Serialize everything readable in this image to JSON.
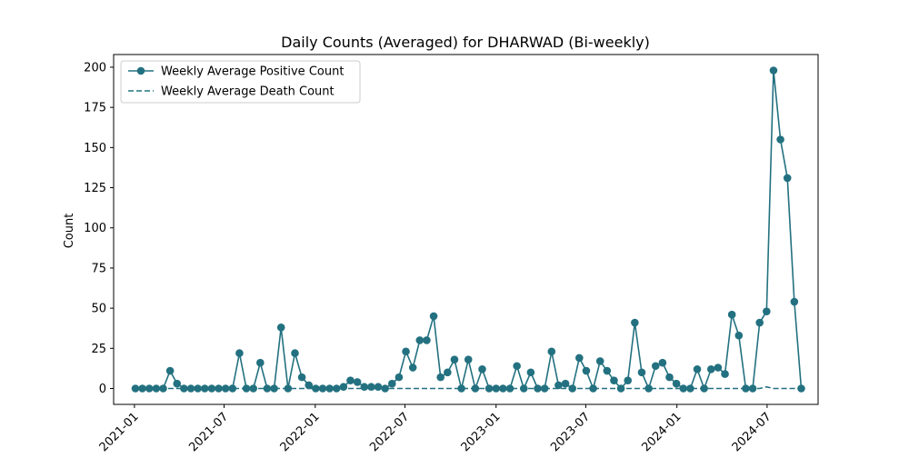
{
  "chart_data": {
    "type": "line",
    "title": "Daily Counts (Averaged) for DHARWAD (Bi-weekly)",
    "xlabel": "",
    "ylabel": "Count",
    "ylim": [
      -9.9,
      207.9
    ],
    "xlim": [
      "2020-11-20",
      "2024-10-12"
    ],
    "yticks": [
      0,
      25,
      50,
      75,
      100,
      125,
      150,
      175,
      200
    ],
    "xticks": [
      {
        "date": "2021-01-01",
        "label": "2021-01"
      },
      {
        "date": "2021-07-01",
        "label": "2021-07"
      },
      {
        "date": "2022-01-01",
        "label": "2022-01"
      },
      {
        "date": "2022-07-01",
        "label": "2022-07"
      },
      {
        "date": "2023-01-01",
        "label": "2023-01"
      },
      {
        "date": "2023-07-01",
        "label": "2023-07"
      },
      {
        "date": "2024-01-01",
        "label": "2024-01"
      },
      {
        "date": "2024-07-01",
        "label": "2024-07"
      }
    ],
    "grid": false,
    "legend": "top-left",
    "series": [
      {
        "name": "Weekly Average Positive Count",
        "color": "#237180",
        "style": "solid",
        "marker": "circle",
        "points": [
          [
            "2021-01-03",
            0
          ],
          [
            "2021-01-17",
            0
          ],
          [
            "2021-01-31",
            0
          ],
          [
            "2021-02-14",
            0
          ],
          [
            "2021-02-28",
            0
          ],
          [
            "2021-03-14",
            11
          ],
          [
            "2021-03-28",
            3
          ],
          [
            "2021-04-11",
            0
          ],
          [
            "2021-04-25",
            0
          ],
          [
            "2021-05-09",
            0
          ],
          [
            "2021-05-23",
            0
          ],
          [
            "2021-06-06",
            0
          ],
          [
            "2021-06-20",
            0
          ],
          [
            "2021-07-04",
            0
          ],
          [
            "2021-07-18",
            0
          ],
          [
            "2021-08-01",
            22
          ],
          [
            "2021-08-15",
            0
          ],
          [
            "2021-08-29",
            0
          ],
          [
            "2021-09-12",
            16
          ],
          [
            "2021-09-26",
            0
          ],
          [
            "2021-10-10",
            0
          ],
          [
            "2021-10-24",
            38
          ],
          [
            "2021-11-07",
            0
          ],
          [
            "2021-11-21",
            22
          ],
          [
            "2021-12-05",
            7
          ],
          [
            "2021-12-19",
            2
          ],
          [
            "2022-01-02",
            0
          ],
          [
            "2022-01-16",
            0
          ],
          [
            "2022-01-30",
            0
          ],
          [
            "2022-02-13",
            0
          ],
          [
            "2022-02-27",
            1
          ],
          [
            "2022-03-13",
            5
          ],
          [
            "2022-03-27",
            4
          ],
          [
            "2022-04-10",
            1
          ],
          [
            "2022-04-24",
            1
          ],
          [
            "2022-05-08",
            1
          ],
          [
            "2022-05-22",
            0
          ],
          [
            "2022-06-05",
            3
          ],
          [
            "2022-06-19",
            7
          ],
          [
            "2022-07-03",
            23
          ],
          [
            "2022-07-17",
            13
          ],
          [
            "2022-07-31",
            30
          ],
          [
            "2022-08-14",
            30
          ],
          [
            "2022-08-28",
            45
          ],
          [
            "2022-09-11",
            7
          ],
          [
            "2022-09-25",
            10
          ],
          [
            "2022-10-09",
            18
          ],
          [
            "2022-10-23",
            0
          ],
          [
            "2022-11-06",
            18
          ],
          [
            "2022-11-20",
            0
          ],
          [
            "2022-12-04",
            12
          ],
          [
            "2022-12-18",
            0
          ],
          [
            "2023-01-01",
            0
          ],
          [
            "2023-01-15",
            0
          ],
          [
            "2023-01-29",
            0
          ],
          [
            "2023-02-12",
            14
          ],
          [
            "2023-02-26",
            0
          ],
          [
            "2023-03-12",
            10
          ],
          [
            "2023-03-26",
            0
          ],
          [
            "2023-04-09",
            0
          ],
          [
            "2023-04-23",
            23
          ],
          [
            "2023-05-07",
            2
          ],
          [
            "2023-05-21",
            3
          ],
          [
            "2023-06-04",
            0
          ],
          [
            "2023-06-18",
            19
          ],
          [
            "2023-07-02",
            11
          ],
          [
            "2023-07-16",
            0
          ],
          [
            "2023-07-30",
            17
          ],
          [
            "2023-08-13",
            11
          ],
          [
            "2023-08-27",
            5
          ],
          [
            "2023-09-10",
            0
          ],
          [
            "2023-09-24",
            5
          ],
          [
            "2023-10-08",
            41
          ],
          [
            "2023-10-22",
            10
          ],
          [
            "2023-11-05",
            0
          ],
          [
            "2023-11-19",
            14
          ],
          [
            "2023-12-03",
            16
          ],
          [
            "2023-12-17",
            7
          ],
          [
            "2023-12-31",
            3
          ],
          [
            "2024-01-14",
            0
          ],
          [
            "2024-01-28",
            0
          ],
          [
            "2024-02-11",
            12
          ],
          [
            "2024-02-25",
            0
          ],
          [
            "2024-03-10",
            12
          ],
          [
            "2024-03-24",
            13
          ],
          [
            "2024-04-07",
            9
          ],
          [
            "2024-04-21",
            46
          ],
          [
            "2024-05-05",
            33
          ],
          [
            "2024-05-19",
            0
          ],
          [
            "2024-06-02",
            0
          ],
          [
            "2024-06-16",
            41
          ],
          [
            "2024-06-30",
            48
          ],
          [
            "2024-07-14",
            198
          ],
          [
            "2024-07-28",
            155
          ],
          [
            "2024-08-11",
            131
          ],
          [
            "2024-08-25",
            54
          ],
          [
            "2024-09-08",
            0
          ]
        ]
      },
      {
        "name": "Weekly Average Death Count",
        "color": "#237180",
        "style": "dashed",
        "marker": "none",
        "points": [
          [
            "2021-01-03",
            0
          ],
          [
            "2022-01-02",
            0
          ],
          [
            "2023-01-01",
            0
          ],
          [
            "2024-06-16",
            0
          ],
          [
            "2024-06-30",
            1
          ],
          [
            "2024-07-14",
            0
          ],
          [
            "2024-09-08",
            0
          ]
        ]
      }
    ]
  }
}
